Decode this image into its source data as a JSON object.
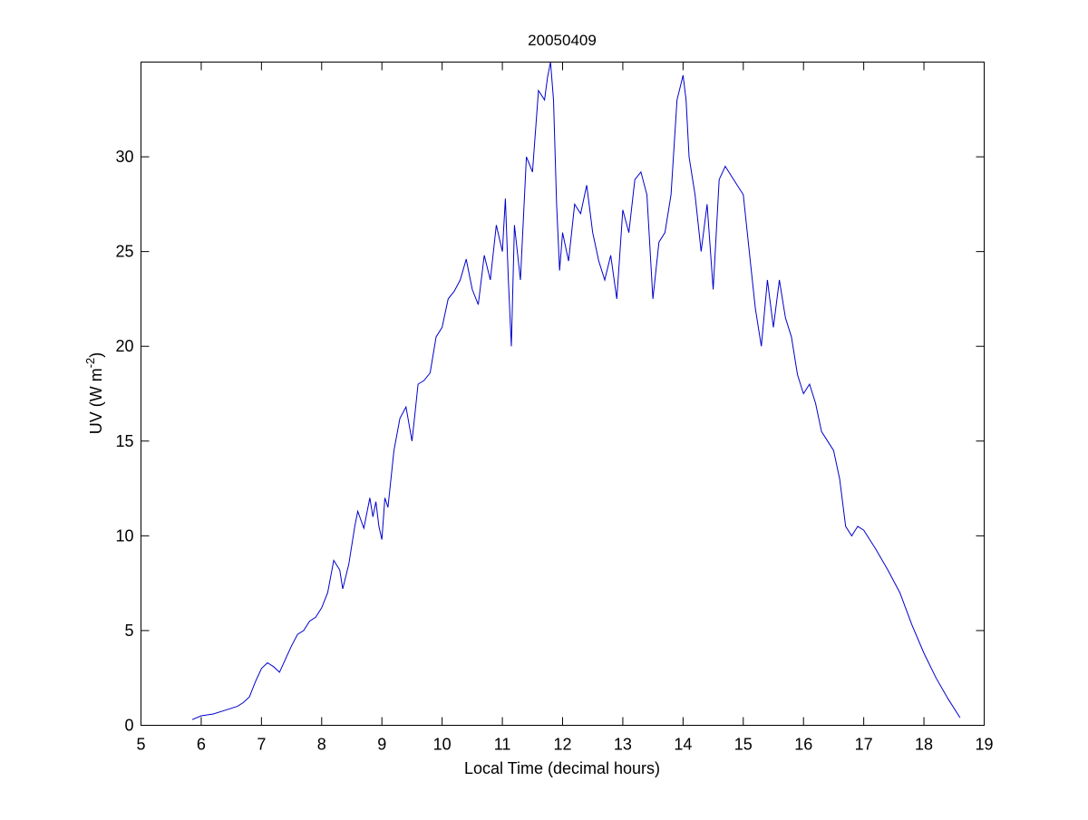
{
  "figure": {
    "title": "20050409",
    "xlabel": "Local Time (decimal hours)",
    "ylabel_main": "UV (W m",
    "ylabel_sup": "-2",
    "ylabel_close": ")"
  },
  "chart_data": {
    "type": "line",
    "title": "20050409",
    "xlabel": "Local Time (decimal hours)",
    "ylabel": "UV (W m-2)",
    "xlim": [
      5,
      19
    ],
    "ylim": [
      0,
      35
    ],
    "xticks": [
      5,
      6,
      7,
      8,
      9,
      10,
      11,
      12,
      13,
      14,
      15,
      16,
      17,
      18,
      19
    ],
    "yticks": [
      0,
      5,
      10,
      15,
      20,
      25,
      30
    ],
    "grid": false,
    "series": [
      {
        "color": "#0000cc",
        "x": [
          5.85,
          6.0,
          6.2,
          6.4,
          6.5,
          6.6,
          6.7,
          6.8,
          6.9,
          7.0,
          7.1,
          7.2,
          7.3,
          7.4,
          7.5,
          7.6,
          7.7,
          7.8,
          7.9,
          8.0,
          8.1,
          8.2,
          8.3,
          8.35,
          8.45,
          8.55,
          8.6,
          8.7,
          8.8,
          8.85,
          8.9,
          8.95,
          9.0,
          9.05,
          9.1,
          9.2,
          9.3,
          9.4,
          9.5,
          9.55,
          9.6,
          9.7,
          9.8,
          9.9,
          10.0,
          10.1,
          10.2,
          10.3,
          10.4,
          10.5,
          10.6,
          10.7,
          10.8,
          10.9,
          11.0,
          11.05,
          11.1,
          11.15,
          11.2,
          11.3,
          11.4,
          11.5,
          11.6,
          11.7,
          11.75,
          11.8,
          11.85,
          11.9,
          11.95,
          12.0,
          12.1,
          12.2,
          12.3,
          12.4,
          12.5,
          12.6,
          12.7,
          12.8,
          12.9,
          13.0,
          13.1,
          13.2,
          13.3,
          13.4,
          13.5,
          13.6,
          13.7,
          13.8,
          13.9,
          14.0,
          14.05,
          14.1,
          14.2,
          14.3,
          14.4,
          14.5,
          14.6,
          14.7,
          14.8,
          14.9,
          15.0,
          15.1,
          15.2,
          15.3,
          15.4,
          15.5,
          15.6,
          15.7,
          15.8,
          15.9,
          16.0,
          16.1,
          16.2,
          16.3,
          16.4,
          16.5,
          16.6,
          16.7,
          16.8,
          16.9,
          17.0,
          17.2,
          17.4,
          17.6,
          17.8,
          18.0,
          18.2,
          18.4,
          18.6
        ],
        "y": [
          0.3,
          0.5,
          0.6,
          0.8,
          0.9,
          1.0,
          1.2,
          1.5,
          2.3,
          3.0,
          3.3,
          3.1,
          2.8,
          3.5,
          4.2,
          4.8,
          5.0,
          5.5,
          5.7,
          6.2,
          7.0,
          8.7,
          8.2,
          7.2,
          8.5,
          10.5,
          11.3,
          10.4,
          12.0,
          11.0,
          11.8,
          10.5,
          9.8,
          12.0,
          11.5,
          14.5,
          16.2,
          16.8,
          15.0,
          16.5,
          18.0,
          18.2,
          18.6,
          20.5,
          21.0,
          22.5,
          22.9,
          23.5,
          24.6,
          23.0,
          22.2,
          24.8,
          23.5,
          26.4,
          25.0,
          27.8,
          23.5,
          20.0,
          26.4,
          23.5,
          30.0,
          29.2,
          33.5,
          33.0,
          34.2,
          35.0,
          33.0,
          27.5,
          24.0,
          26.0,
          24.5,
          27.5,
          27.0,
          28.5,
          26.0,
          24.5,
          23.5,
          24.8,
          22.5,
          27.2,
          26.0,
          28.8,
          29.2,
          28.0,
          22.5,
          25.5,
          26.0,
          28.0,
          33.0,
          34.3,
          33.0,
          30.0,
          28.0,
          25.0,
          27.5,
          23.0,
          28.8,
          29.5,
          29.0,
          28.5,
          28.0,
          25.0,
          22.0,
          20.0,
          23.5,
          21.0,
          23.5,
          21.5,
          20.5,
          18.5,
          17.5,
          18.0,
          17.0,
          15.5,
          15.0,
          14.5,
          13.0,
          10.5,
          10.0,
          10.5,
          10.3,
          9.3,
          8.2,
          7.0,
          5.3,
          3.8,
          2.5,
          1.4,
          0.4
        ]
      }
    ]
  }
}
